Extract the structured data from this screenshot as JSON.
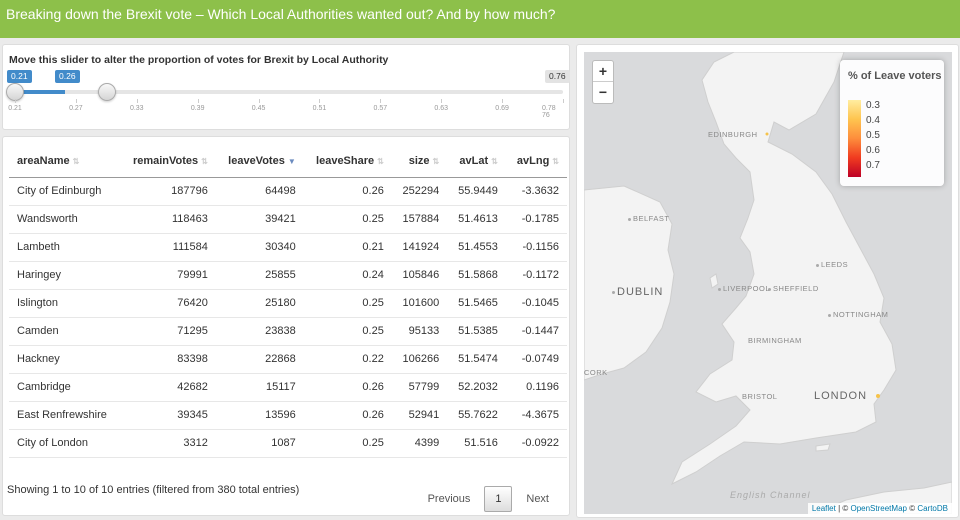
{
  "header": {
    "title": "Breaking down the Brexit vote – Which Local Authorities wanted out? And by how much?"
  },
  "slider": {
    "label": "Move this slider to alter the proportion of votes for Brexit by Local Authority",
    "from_label": "0.21",
    "to_label": "0.26",
    "max_label": "0.76",
    "min": 0.21,
    "max": 0.76,
    "from_value": 0.21,
    "to_value": 0.26,
    "ticks": [
      "0.21",
      "0.27",
      "0.33",
      "0.39",
      "0.45",
      "0.51",
      "0.57",
      "0.63",
      "0.69",
      "0.78 76"
    ]
  },
  "table": {
    "columns": [
      "areaName",
      "remainVotes",
      "leaveVotes",
      "leaveShare",
      "size",
      "avLat",
      "avLng"
    ],
    "rows": [
      [
        "City of Edinburgh",
        "187796",
        "64498",
        "0.26",
        "252294",
        "55.9449",
        "-3.3632"
      ],
      [
        "Wandsworth",
        "118463",
        "39421",
        "0.25",
        "157884",
        "51.4613",
        "-0.1785"
      ],
      [
        "Lambeth",
        "111584",
        "30340",
        "0.21",
        "141924",
        "51.4553",
        "-0.1156"
      ],
      [
        "Haringey",
        "79991",
        "25855",
        "0.24",
        "105846",
        "51.5868",
        "-0.1172"
      ],
      [
        "Islington",
        "76420",
        "25180",
        "0.25",
        "101600",
        "51.5465",
        "-0.1045"
      ],
      [
        "Camden",
        "71295",
        "23838",
        "0.25",
        "95133",
        "51.5385",
        "-0.1447"
      ],
      [
        "Hackney",
        "83398",
        "22868",
        "0.22",
        "106266",
        "51.5474",
        "-0.0749"
      ],
      [
        "Cambridge",
        "42682",
        "15117",
        "0.26",
        "57799",
        "52.2032",
        "0.1196"
      ],
      [
        "East Renfrewshire",
        "39345",
        "13596",
        "0.26",
        "52941",
        "55.7622",
        "-4.3675"
      ],
      [
        "City of London",
        "3312",
        "1087",
        "0.25",
        "4399",
        "51.516",
        "-0.0922"
      ]
    ],
    "info": "Showing 1 to 10 of 10 entries (filtered from 380 total entries)",
    "pager": {
      "previous": "Previous",
      "current": "1",
      "next": "Next"
    }
  },
  "map": {
    "zoom_in": "+",
    "zoom_out": "−",
    "legend": {
      "title": "% of Leave voters",
      "values": [
        "0.3",
        "0.4",
        "0.5",
        "0.6",
        "0.7"
      ]
    },
    "places": {
      "edinburgh": "EDINBURGH",
      "belfast": "BELFAST",
      "dublin": "DUBLIN",
      "leeds": "LEEDS",
      "liverpool": "LIVERPOOL",
      "sheffield": "SHEFFIELD",
      "nottingham": "NOTTINGHAM",
      "birmingham": "BIRMINGHAM",
      "bristol": "BRISTOL",
      "london": "LONDON",
      "cork": "CORK"
    },
    "channel": "English Channel",
    "attribution": {
      "leaflet": "Leaflet",
      "sep": " | © ",
      "osm": "OpenStreetMap",
      "sep2": " © ",
      "carto": "CartoDB"
    }
  }
}
